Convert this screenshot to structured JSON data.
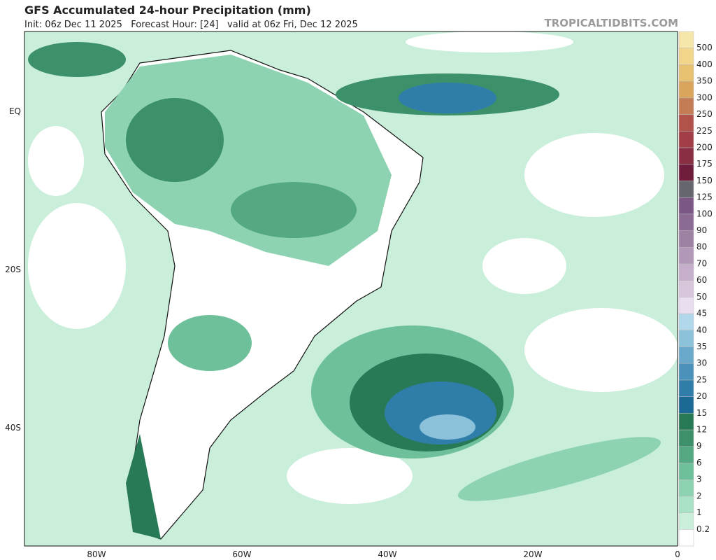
{
  "header": {
    "title": "GFS Accumulated 24-hour Precipitation (mm)",
    "subtitle": "Init: 06z Dec 11 2025   Forecast Hour: [24]   valid at 06z Fri, Dec 12 2025",
    "source": "TROPICALTIDBITS.COM"
  },
  "map": {
    "lat_labels": [
      "EQ",
      "20S",
      "40S"
    ],
    "lon_labels": [
      "80W",
      "60W",
      "40W",
      "20W",
      "0"
    ]
  },
  "colorbar": {
    "levels": [
      0.2,
      1,
      2,
      3,
      6,
      9,
      12,
      15,
      20,
      25,
      30,
      35,
      40,
      45,
      50,
      60,
      70,
      80,
      90,
      100,
      125,
      150,
      175,
      200,
      225,
      250,
      300,
      350,
      400,
      500
    ],
    "colors": [
      "#ffffff",
      "#c9eed9",
      "#a9e2c6",
      "#8dd3b1",
      "#6ec09a",
      "#54a982",
      "#3c906a",
      "#277a55",
      "#1a6a95",
      "#2f7eaa",
      "#4a92b9",
      "#6aa9ca",
      "#8cc1da",
      "#b1d8ea",
      "#e9def0",
      "#d8c6dc",
      "#c6afcb",
      "#b298b8",
      "#9d82a4",
      "#8b6b93",
      "#7a5785",
      "#66666e",
      "#6e1d3d",
      "#8a2e43",
      "#a23f46",
      "#b1524b",
      "#c47c56",
      "#d9a55c",
      "#e8c171",
      "#f2d68b",
      "#f7e6aa"
    ]
  }
}
